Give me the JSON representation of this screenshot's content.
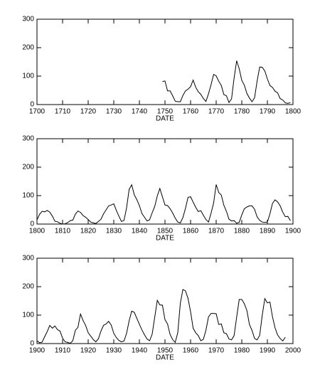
{
  "chart_data": [
    {
      "type": "line",
      "xlabel": "DATE",
      "xlim": [
        1700,
        1800
      ],
      "ylim": [
        0,
        300
      ],
      "xticks": [
        1700,
        1710,
        1720,
        1730,
        1740,
        1750,
        1760,
        1770,
        1780,
        1790,
        1800
      ],
      "yticks": [
        0,
        100,
        200,
        300
      ],
      "x": [
        1749,
        1750,
        1751,
        1752,
        1753,
        1754,
        1755,
        1756,
        1757,
        1758,
        1759,
        1760,
        1761,
        1762,
        1763,
        1764,
        1765,
        1766,
        1767,
        1768,
        1769,
        1770,
        1771,
        1772,
        1773,
        1774,
        1775,
        1776,
        1777,
        1778,
        1779,
        1780,
        1781,
        1782,
        1783,
        1784,
        1785,
        1786,
        1787,
        1788,
        1789,
        1790,
        1791,
        1792,
        1793,
        1794,
        1795,
        1796,
        1797,
        1798,
        1799
      ],
      "series": [
        {
          "color": "#000000",
          "values": [
            81,
            83,
            48,
            48,
            31,
            12,
            10,
            10,
            32,
            48,
            54,
            63,
            86,
            61,
            45,
            36,
            21,
            11,
            38,
            70,
            106,
            101,
            82,
            67,
            35,
            31,
            7,
            20,
            93,
            154,
            126,
            85,
            68,
            39,
            23,
            10,
            24,
            83,
            132,
            131,
            118,
            90,
            67,
            60,
            47,
            41,
            21,
            16,
            6,
            4,
            7
          ]
        }
      ]
    },
    {
      "type": "line",
      "xlabel": "DATE",
      "xlim": [
        1800,
        1900
      ],
      "ylim": [
        0,
        300
      ],
      "xticks": [
        1800,
        1810,
        1820,
        1830,
        1840,
        1850,
        1860,
        1870,
        1880,
        1890,
        1900
      ],
      "yticks": [
        0,
        100,
        200,
        300
      ],
      "x": [
        1800,
        1801,
        1802,
        1803,
        1804,
        1805,
        1806,
        1807,
        1808,
        1809,
        1810,
        1811,
        1812,
        1813,
        1814,
        1815,
        1816,
        1817,
        1818,
        1819,
        1820,
        1821,
        1822,
        1823,
        1824,
        1825,
        1826,
        1827,
        1828,
        1829,
        1830,
        1831,
        1832,
        1833,
        1834,
        1835,
        1836,
        1837,
        1838,
        1839,
        1840,
        1841,
        1842,
        1843,
        1844,
        1845,
        1846,
        1847,
        1848,
        1849,
        1850,
        1851,
        1852,
        1853,
        1854,
        1855,
        1856,
        1857,
        1858,
        1859,
        1860,
        1861,
        1862,
        1863,
        1864,
        1865,
        1866,
        1867,
        1868,
        1869,
        1870,
        1871,
        1872,
        1873,
        1874,
        1875,
        1876,
        1877,
        1878,
        1879,
        1880,
        1881,
        1882,
        1883,
        1884,
        1885,
        1886,
        1887,
        1888,
        1889,
        1890,
        1891,
        1892,
        1893,
        1894,
        1895,
        1896,
        1897,
        1898,
        1899
      ],
      "series": [
        {
          "color": "#000000",
          "values": [
            15,
            34,
            45,
            43,
            48,
            42,
            28,
            10,
            8,
            3,
            0,
            1,
            5,
            12,
            14,
            35,
            46,
            41,
            30,
            24,
            16,
            7,
            4,
            2,
            9,
            17,
            36,
            50,
            64,
            67,
            71,
            48,
            28,
            9,
            13,
            57,
            122,
            138,
            103,
            86,
            65,
            37,
            24,
            11,
            15,
            40,
            62,
            99,
            125,
            96,
            67,
            65,
            54,
            39,
            21,
            7,
            4,
            23,
            55,
            94,
            96,
            77,
            59,
            44,
            47,
            31,
            16,
            7,
            38,
            74,
            139,
            111,
            102,
            66,
            45,
            17,
            11,
            12,
            3,
            6,
            32,
            54,
            60,
            64,
            64,
            52,
            25,
            13,
            7,
            6,
            7,
            36,
            73,
            85,
            78,
            64,
            42,
            26,
            27,
            12
          ]
        }
      ]
    },
    {
      "type": "line",
      "xlabel": "DATE",
      "xlim": [
        1900,
        2000
      ],
      "ylim": [
        0,
        300
      ],
      "xticks": [
        1900,
        1910,
        1920,
        1930,
        1940,
        1950,
        1960,
        1970,
        1980,
        1990,
        2000
      ],
      "yticks": [
        0,
        100,
        200,
        300
      ],
      "x": [
        1900,
        1901,
        1902,
        1903,
        1904,
        1905,
        1906,
        1907,
        1908,
        1909,
        1910,
        1911,
        1912,
        1913,
        1914,
        1915,
        1916,
        1917,
        1918,
        1919,
        1920,
        1921,
        1922,
        1923,
        1924,
        1925,
        1926,
        1927,
        1928,
        1929,
        1930,
        1931,
        1932,
        1933,
        1934,
        1935,
        1936,
        1937,
        1938,
        1939,
        1940,
        1941,
        1942,
        1943,
        1944,
        1945,
        1946,
        1947,
        1948,
        1949,
        1950,
        1951,
        1952,
        1953,
        1954,
        1955,
        1956,
        1957,
        1958,
        1959,
        1960,
        1961,
        1962,
        1963,
        1964,
        1965,
        1966,
        1967,
        1968,
        1969,
        1970,
        1971,
        1972,
        1973,
        1974,
        1975,
        1976,
        1977,
        1978,
        1979,
        1980,
        1981,
        1982,
        1983,
        1984,
        1985,
        1986,
        1987,
        1988,
        1989,
        1990,
        1991,
        1992,
        1993,
        1994,
        1995,
        1996,
        1997
      ],
      "series": [
        {
          "color": "#000000",
          "values": [
            10,
            3,
            5,
            24,
            42,
            64,
            54,
            62,
            49,
            44,
            19,
            6,
            4,
            1,
            10,
            47,
            57,
            104,
            81,
            64,
            38,
            26,
            14,
            6,
            17,
            44,
            64,
            69,
            78,
            65,
            36,
            21,
            11,
            6,
            9,
            36,
            80,
            114,
            110,
            89,
            68,
            48,
            31,
            16,
            10,
            33,
            93,
            152,
            136,
            135,
            84,
            69,
            32,
            14,
            4,
            38,
            142,
            190,
            185,
            159,
            112,
            54,
            38,
            28,
            10,
            15,
            47,
            94,
            106,
            106,
            105,
            67,
            69,
            38,
            35,
            16,
            13,
            28,
            93,
            155,
            155,
            140,
            116,
            67,
            46,
            18,
            13,
            29,
            100,
            158,
            143,
            146,
            94,
            55,
            30,
            18,
            9,
            22
          ]
        }
      ]
    }
  ]
}
